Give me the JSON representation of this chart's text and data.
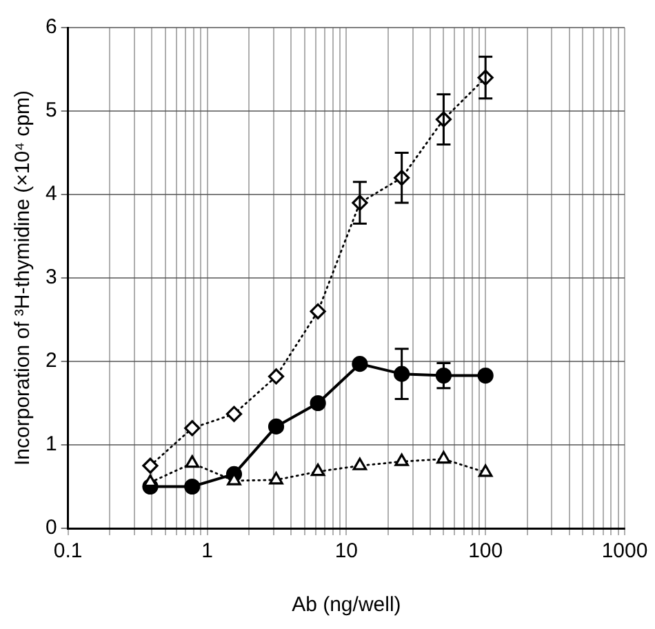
{
  "chart_data": {
    "type": "line",
    "xlabel": "Ab (ng/well)",
    "ylabel": "Incorporation of ³H-thymidine (×10⁴ cpm)",
    "log": "x",
    "grid": true,
    "legend": false,
    "x": [
      0.39,
      0.78,
      1.56,
      3.13,
      6.25,
      12.5,
      25,
      50,
      100
    ],
    "xlim": [
      0.1,
      1000
    ],
    "ylim": [
      0,
      6
    ],
    "yticks": [
      0,
      1,
      2,
      3,
      4,
      5,
      6
    ],
    "xticks": [
      0.1,
      {
        "value": 0.2,
        "label": null
      },
      {
        "value": 0.3,
        "label": null
      },
      {
        "value": 0.4,
        "label": null
      },
      {
        "value": 0.5,
        "label": null
      },
      {
        "value": 0.6,
        "label": null
      },
      {
        "value": 0.7,
        "label": null
      },
      {
        "value": 0.8,
        "label": null
      },
      {
        "value": 0.9,
        "label": null
      },
      1,
      {
        "value": 2,
        "label": null
      },
      {
        "value": 3,
        "label": null
      },
      {
        "value": 4,
        "label": null
      },
      {
        "value": 5,
        "label": null
      },
      {
        "value": 6,
        "label": null
      },
      {
        "value": 7,
        "label": null
      },
      {
        "value": 8,
        "label": null
      },
      {
        "value": 9,
        "label": null
      },
      10,
      {
        "value": 20,
        "label": null
      },
      {
        "value": 30,
        "label": null
      },
      {
        "value": 40,
        "label": null
      },
      {
        "value": 50,
        "label": null
      },
      {
        "value": 60,
        "label": null
      },
      {
        "value": 70,
        "label": null
      },
      {
        "value": 80,
        "label": null
      },
      {
        "value": 90,
        "label": null
      },
      100,
      {
        "value": 200,
        "label": null
      },
      {
        "value": 300,
        "label": null
      },
      {
        "value": 400,
        "label": null
      },
      {
        "value": 500,
        "label": null
      },
      {
        "value": 600,
        "label": null
      },
      {
        "value": 700,
        "label": null
      },
      {
        "value": 800,
        "label": null
      },
      {
        "value": 900,
        "label": null
      },
      1000
    ],
    "series": [
      {
        "color": "#000000",
        "marker": "diamond",
        "line_style": "dotted",
        "values": [
          0.75,
          1.2,
          1.37,
          1.82,
          2.6,
          3.9,
          4.2,
          4.9,
          5.4
        ],
        "errors": [
          null,
          null,
          null,
          null,
          null,
          0.25,
          0.3,
          0.3,
          0.25
        ]
      },
      {
        "color": "#000000",
        "marker": "circle",
        "line_style": "solid",
        "values": [
          0.5,
          0.5,
          0.65,
          1.22,
          1.5,
          1.97,
          1.85,
          1.83,
          1.83
        ],
        "errors": [
          null,
          null,
          null,
          null,
          null,
          null,
          0.3,
          0.15,
          null
        ]
      },
      {
        "color": "#000000",
        "marker": "triangle",
        "line_style": "dotted",
        "values": [
          0.55,
          0.78,
          0.57,
          0.58,
          0.68,
          0.75,
          0.8,
          0.83,
          0.67
        ]
      }
    ]
  }
}
